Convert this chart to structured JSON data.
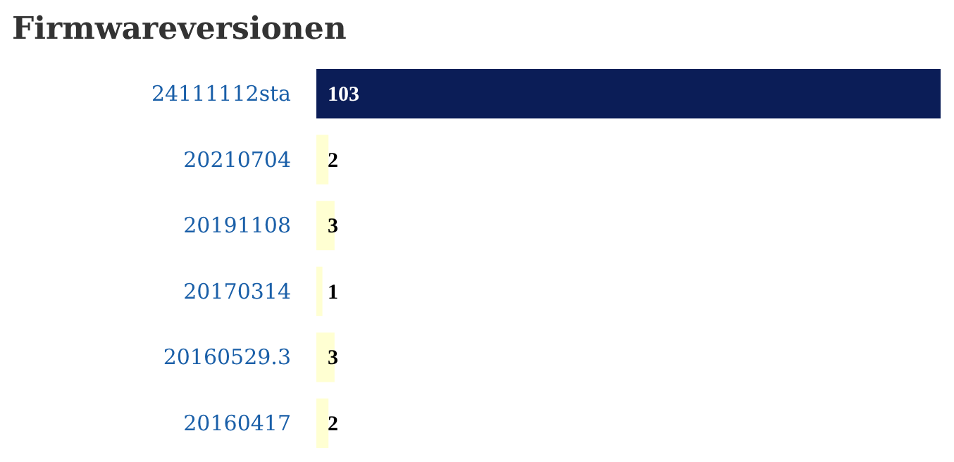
{
  "chart_data": {
    "type": "bar",
    "orientation": "horizontal",
    "title": "Firmwareversionen",
    "categories": [
      "24111112sta",
      "20210704",
      "20191108",
      "20170314",
      "20160529.3",
      "20160417"
    ],
    "values": [
      103,
      2,
      3,
      1,
      3,
      2
    ],
    "colors": [
      "#0b1d57",
      "#ffffd2",
      "#ffffd2",
      "#ffffd2",
      "#ffffd2",
      "#ffffd2"
    ],
    "data_labels": true,
    "grid": false
  }
}
